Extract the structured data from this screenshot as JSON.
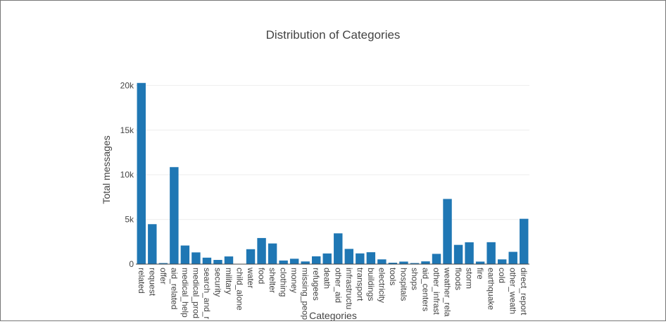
{
  "chart_data": {
    "type": "bar",
    "title": "Distribution of Categories",
    "xlabel": "Categories",
    "ylabel": "Total messages",
    "ylim": [
      0,
      20500
    ],
    "yticks": [
      0,
      5000,
      10000,
      15000,
      20000
    ],
    "ytick_labels": [
      "0",
      "5k",
      "10k",
      "15k",
      "20k"
    ],
    "grid": true,
    "bar_color": "#1f77b4",
    "categories": [
      "related",
      "request",
      "offer",
      "aid_related",
      "medical_help",
      "medical_products",
      "search_and_rescue",
      "security",
      "military",
      "child_alone",
      "water",
      "food",
      "shelter",
      "clothing",
      "money",
      "missing_people",
      "refugees",
      "death",
      "other_aid",
      "infrastructure_related",
      "transport",
      "buildings",
      "electricity",
      "tools",
      "hospitals",
      "shops",
      "aid_centers",
      "other_infrastructure",
      "weather_related",
      "floods",
      "storm",
      "fire",
      "earthquake",
      "cold",
      "other_weather",
      "direct_report"
    ],
    "tick_labels": [
      "related",
      "request",
      "offer",
      "aid_related",
      "medical_help",
      "medical_prod",
      "search_and_r",
      "security",
      "military",
      "child_alone",
      "water",
      "food",
      "shelter",
      "clothing",
      "money",
      "missing_peop",
      "refugees",
      "death",
      "other_aid",
      "infrastructu",
      "transport",
      "buildings",
      "electricity",
      "tools",
      "hospitals",
      "shops",
      "aid_centers",
      "other_infrast",
      "weather_rela",
      "floods",
      "storm",
      "fire",
      "earthquake",
      "cold",
      "other_weath",
      "direct_report"
    ],
    "values": [
      20282,
      4474,
      118,
      10860,
      2084,
      1313,
      724,
      471,
      860,
      0,
      1672,
      2923,
      2314,
      405,
      604,
      298,
      875,
      1194,
      3446,
      1705,
      1201,
      1333,
      532,
      159,
      283,
      120,
      309,
      1151,
      7297,
      2155,
      2443,
      282,
      2455,
      530,
      1376,
      5075
    ]
  }
}
